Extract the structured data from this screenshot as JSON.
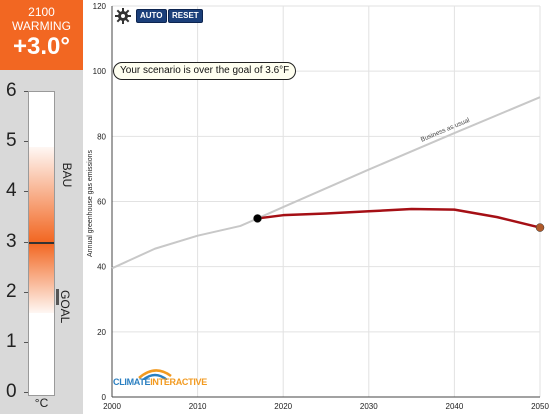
{
  "warming": {
    "year": "2100",
    "label": "WARMING",
    "value": "+3.0°"
  },
  "thermometer": {
    "ticks": [
      "0",
      "1",
      "2",
      "3",
      "4",
      "5",
      "6"
    ],
    "bau_label": "BAU",
    "goal_label": "GOAL",
    "unit": "°C",
    "bau_level": 4.9,
    "goal_level": 1.6,
    "current_level": 3.0,
    "fill_color": "#f26722"
  },
  "toolbar": {
    "settings_icon": "gear-icon",
    "auto_label": "AUTO",
    "reset_label": "RESET"
  },
  "callout": {
    "text": "Your scenario is over the goal of 3.6°F"
  },
  "logo": {
    "climate": "CLIMATE",
    "interactive": "INTERACTIVE"
  },
  "chart_data": {
    "type": "line",
    "ylabel": "Annual greenhouse gas emissions",
    "xlabel": "",
    "xlim": [
      2000,
      2050
    ],
    "ylim": [
      0,
      120
    ],
    "xticks": [
      2000,
      2010,
      2020,
      2030,
      2040,
      2050
    ],
    "yticks": [
      0,
      20,
      40,
      60,
      80,
      100,
      120
    ],
    "grid": true,
    "series": [
      {
        "name": "Business as usual",
        "color": "#c8c8c8",
        "x": [
          2000,
          2005,
          2010,
          2015,
          2017,
          2020,
          2030,
          2040,
          2050
        ],
        "values": [
          39.5,
          45.5,
          49.5,
          52.5,
          54.8,
          58.3,
          69.8,
          81.0,
          92.0
        ]
      },
      {
        "name": "",
        "color": "#a50f15",
        "x": [
          2017,
          2020,
          2025,
          2030,
          2035,
          2040,
          2045,
          2050
        ],
        "values": [
          54.8,
          55.8,
          56.3,
          57.0,
          57.7,
          57.5,
          55.2,
          52.0
        ]
      }
    ],
    "markers": [
      {
        "x": 2017,
        "y": 54.8,
        "color": "#000000"
      },
      {
        "x": 2050,
        "y": 52.0,
        "color": "#b05a2a"
      }
    ]
  }
}
